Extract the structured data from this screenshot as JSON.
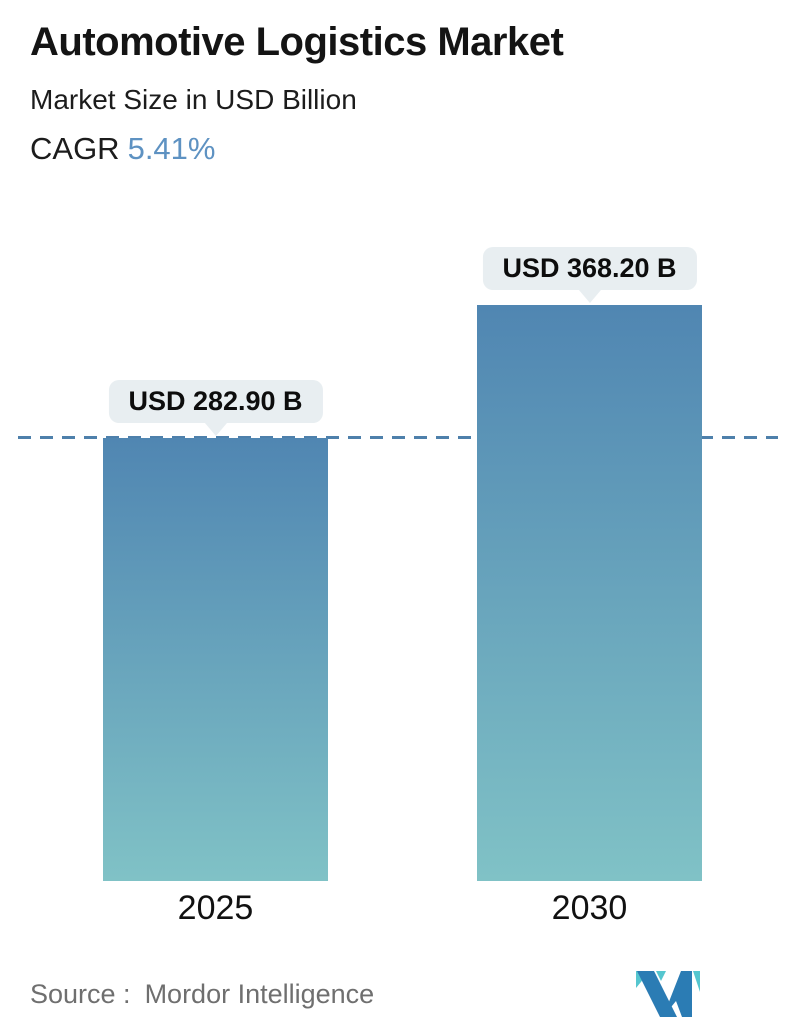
{
  "header": {
    "title": "Automotive Logistics Market",
    "subtitle": "Market Size in USD Billion",
    "cagr_label": "CAGR",
    "cagr_value": "5.41%"
  },
  "chart_data": {
    "type": "bar",
    "title": "Automotive Logistics Market",
    "subtitle": "Market Size in USD Billion",
    "unit": "USD Billion",
    "categories": [
      "2025",
      "2030"
    ],
    "values": [
      282.9,
      368.2
    ],
    "value_labels": [
      "USD 282.90 B",
      "USD 368.20 B"
    ],
    "cagr": "5.41%",
    "reference_line": {
      "at_value": 282.9,
      "style": "dashed",
      "span": "full-width"
    },
    "grid": false,
    "legend": "none",
    "ylim": [
      0,
      368.2
    ],
    "bar_gradient": [
      "#5086b2",
      "#80c2c6"
    ]
  },
  "footer": {
    "source_label": "Source :",
    "source_name": "Mordor Intelligence",
    "logo_icon": "mordor-intelligence-logo"
  },
  "colors": {
    "title_text": "#141414",
    "cagr_value": "#5e92c2",
    "bar_gradient_top": "#5086b2",
    "bar_gradient_bottom": "#80c2c6",
    "reference_line": "#4e80ab",
    "tooltip_bg": "#e8eef1",
    "source_text": "#6f6f6f",
    "logo_blue": "#2b7cb4",
    "logo_teal": "#55c6cf"
  }
}
